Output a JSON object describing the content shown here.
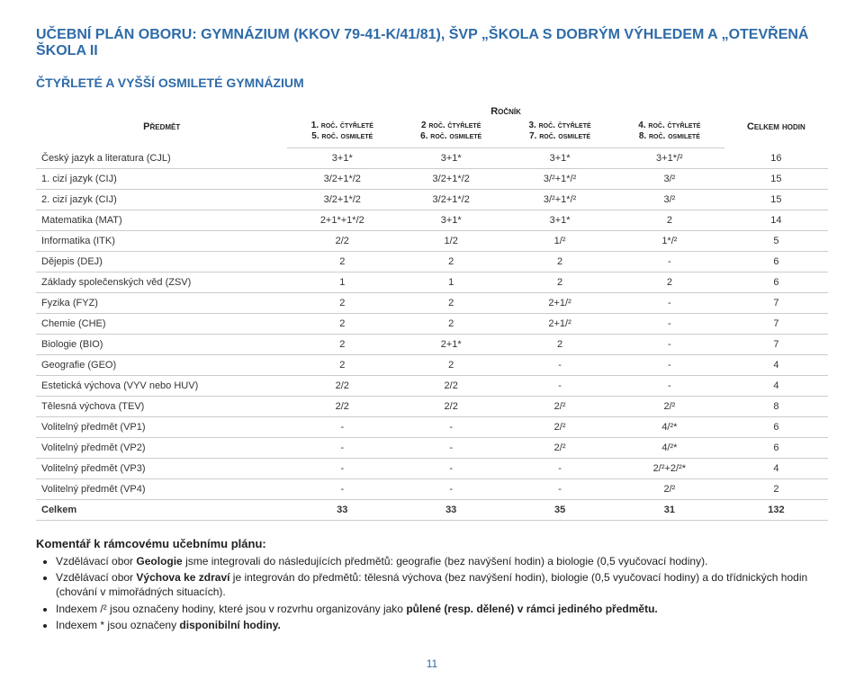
{
  "main_title": "UČEBNÍ PLÁN OBORU: GYMNÁZIUM (KKOV 79-41-K/41/81), ŠVP „ŠKOLA S DOBRÝM VÝHLEDEM A „OTEVŘENÁ ŠKOLA II",
  "subtitle": "ČTYŘLETÉ A VYŠŠÍ OSMILETÉ GYMNÁZIUM",
  "table": {
    "header": {
      "subject": "Předmět",
      "year_group": "Ročník",
      "total": "Celkem hodin",
      "cols": [
        {
          "a": "1. roč. čtyřleté",
          "b": "5. roč. osmileté"
        },
        {
          "a": "2 roč. čtyřleté",
          "b": "6. roč. osmileté"
        },
        {
          "a": "3. roč. čtyřleté",
          "b": "7. roč. osmileté"
        },
        {
          "a": "4. roč. čtyřleté",
          "b": "8. roč. osmileté"
        }
      ]
    },
    "rows": [
      {
        "name": "Český jazyk a literatura (CJL)",
        "c1": "3+1*",
        "c2": "3+1*",
        "c3": "3+1*",
        "c4": "3+1*/²",
        "tot": "16"
      },
      {
        "name": "1. cizí jazyk (CIJ)",
        "c1": "3/2+1*/2",
        "c2": "3/2+1*/2",
        "c3": "3/²+1*/²",
        "c4": "3/²",
        "tot": "15"
      },
      {
        "name": "2. cizí jazyk (CIJ)",
        "c1": "3/2+1*/2",
        "c2": "3/2+1*/2",
        "c3": "3/²+1*/²",
        "c4": "3/²",
        "tot": "15"
      },
      {
        "name": "Matematika (MAT)",
        "c1": "2+1*+1*/2",
        "c2": "3+1*",
        "c3": "3+1*",
        "c4": "2",
        "tot": "14"
      },
      {
        "name": "Informatika (ITK)",
        "c1": "2/2",
        "c2": "1/2",
        "c3": "1/²",
        "c4": "1*/²",
        "tot": "5"
      },
      {
        "name": "Dějepis (DEJ)",
        "c1": "2",
        "c2": "2",
        "c3": "2",
        "c4": "-",
        "tot": "6"
      },
      {
        "name": "Základy společenských věd (ZSV)",
        "c1": "1",
        "c2": "1",
        "c3": "2",
        "c4": "2",
        "tot": "6"
      },
      {
        "name": "Fyzika (FYZ)",
        "c1": "2",
        "c2": "2",
        "c3": "2+1/²",
        "c4": "-",
        "tot": "7"
      },
      {
        "name": "Chemie (CHE)",
        "c1": "2",
        "c2": "2",
        "c3": "2+1/²",
        "c4": "-",
        "tot": "7"
      },
      {
        "name": "Biologie (BIO)",
        "c1": "2",
        "c2": "2+1*",
        "c3": "2",
        "c4": "-",
        "tot": "7"
      },
      {
        "name": "Geografie (GEO)",
        "c1": "2",
        "c2": "2",
        "c3": "-",
        "c4": "-",
        "tot": "4"
      },
      {
        "name": "Estetická výchova (VYV nebo HUV)",
        "c1": "2/2",
        "c2": "2/2",
        "c3": "-",
        "c4": "-",
        "tot": "4"
      },
      {
        "name": "Tělesná výchova (TEV)",
        "c1": "2/2",
        "c2": "2/2",
        "c3": "2/²",
        "c4": "2/²",
        "tot": "8"
      },
      {
        "name": "Volitelný předmět (VP1)",
        "c1": "-",
        "c2": "-",
        "c3": "2/²",
        "c4": "4/²*",
        "tot": "6"
      },
      {
        "name": "Volitelný předmět (VP2)",
        "c1": "-",
        "c2": "-",
        "c3": "2/²",
        "c4": "4/²*",
        "tot": "6"
      },
      {
        "name": "Volitelný předmět (VP3)",
        "c1": "-",
        "c2": "-",
        "c3": "-",
        "c4": "2/²+2/²*",
        "tot": "4"
      },
      {
        "name": "Volitelný předmět (VP4)",
        "c1": "-",
        "c2": "-",
        "c3": "-",
        "c4": "2/²",
        "tot": "2"
      }
    ],
    "total_row": {
      "name": "Celkem",
      "c1": "33",
      "c2": "33",
      "c3": "35",
      "c4": "31",
      "tot": "132"
    }
  },
  "commentary": {
    "title": "Komentář k rámcovému učebnímu plánu:",
    "items": [
      "Vzdělávací obor <b>Geologie</b> jsme integrovali do následujících předmětů: geografie (bez navýšení hodin) a biologie (0,5 vyučovací hodiny).",
      "Vzdělávací obor <b>Výchova ke zdraví</b> je integrován do předmětů: tělesná výchova (bez navýšení hodin), biologie (0,5 vyučovací hodiny) a do třídnických hodin (chování v mimořádných situacích).",
      "Indexem /² jsou označeny hodiny, které jsou v rozvrhu organizovány jako <b>půlené (resp. dělené) v rámci jediného předmětu.</b>",
      "Indexem * jsou označeny <b>disponibilní hodiny.</b>"
    ]
  },
  "page_number": "11",
  "colors": {
    "accent": "#2e6ba8",
    "border": "#cccccc",
    "text": "#333333",
    "bg": "#ffffff"
  }
}
